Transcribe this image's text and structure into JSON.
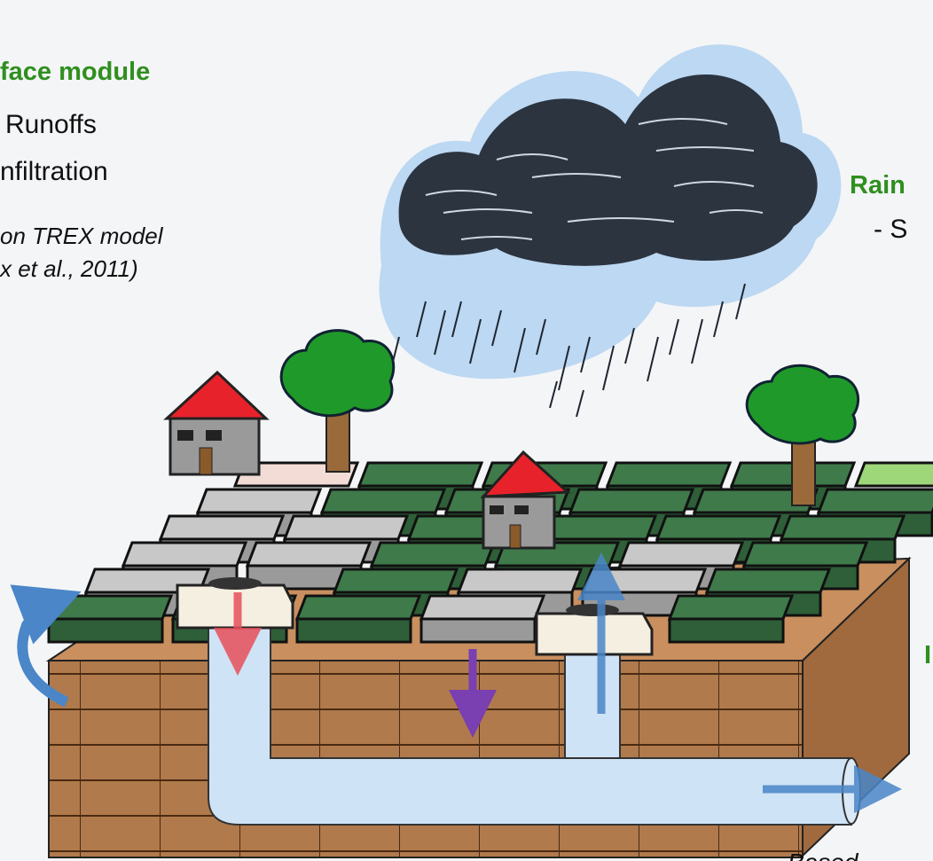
{
  "left_text": {
    "title": "face module",
    "items": [
      "Runoffs",
      "nfiltration"
    ],
    "note": [
      "on TREX model",
      "x et al., 2011)"
    ]
  },
  "right_text": {
    "title": "Rain",
    "item": "- S",
    "lower_title": "I"
  },
  "footer": "Based"
}
